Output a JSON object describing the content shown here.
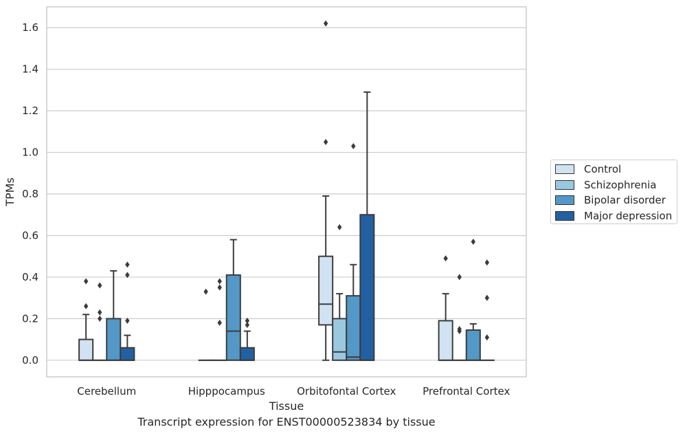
{
  "chart_data": {
    "type": "box",
    "xlabel": "Tissue",
    "ylabel": "TPMs",
    "caption": "Transcript expression for ENST00000523834 by tissue",
    "ylim": [
      -0.08,
      1.7
    ],
    "yticks": [
      "0.0",
      "0.2",
      "0.4",
      "0.6",
      "0.8",
      "1.0",
      "1.2",
      "1.4",
      "1.6"
    ],
    "grid": "horizontal",
    "legend_position": "right",
    "categories": [
      "Cerebellum",
      "Hipppocampus",
      "Orbitofontal Cortex",
      "Prefrontal Cortex"
    ],
    "series": [
      {
        "name": "Control",
        "color": "#d1e2f2",
        "boxes": [
          {
            "q1": 0,
            "median": 0,
            "q3": 0.1,
            "whisker_low": 0,
            "whisker_high": 0.22,
            "outliers": [
              0.26,
              0.38
            ]
          },
          {
            "q1": 0,
            "median": 0,
            "q3": 0,
            "whisker_low": 0,
            "whisker_high": 0,
            "outliers": [
              0.33
            ]
          },
          {
            "q1": 0.17,
            "median": 0.27,
            "q3": 0.5,
            "whisker_low": 0,
            "whisker_high": 0.79,
            "outliers": [
              1.05,
              1.62
            ]
          },
          {
            "q1": 0,
            "median": 0,
            "q3": 0.19,
            "whisker_low": 0,
            "whisker_high": 0.32,
            "outliers": [
              0.49
            ]
          }
        ]
      },
      {
        "name": "Schizophrenia",
        "color": "#9ac8e0",
        "boxes": [
          {
            "q1": 0,
            "median": 0,
            "q3": 0,
            "whisker_low": 0,
            "whisker_high": 0,
            "outliers": [
              0.2,
              0.23,
              0.36
            ]
          },
          {
            "q1": 0,
            "median": 0,
            "q3": 0,
            "whisker_low": 0,
            "whisker_high": 0,
            "outliers": [
              0.18,
              0.35,
              0.38
            ]
          },
          {
            "q1": 0,
            "median": 0.04,
            "q3": 0.2,
            "whisker_low": 0,
            "whisker_high": 0.32,
            "outliers": [
              0.64
            ]
          },
          {
            "q1": 0,
            "median": 0,
            "q3": 0,
            "whisker_low": 0,
            "whisker_high": 0,
            "outliers": [
              0.14,
              0.15,
              0.4
            ]
          }
        ]
      },
      {
        "name": "Bipolar disorder",
        "color": "#5398c6",
        "boxes": [
          {
            "q1": 0,
            "median": 0,
            "q3": 0.2,
            "whisker_low": 0,
            "whisker_high": 0.43,
            "outliers": []
          },
          {
            "q1": 0,
            "median": 0.14,
            "q3": 0.41,
            "whisker_low": 0,
            "whisker_high": 0.58,
            "outliers": []
          },
          {
            "q1": 0,
            "median": 0.015,
            "q3": 0.31,
            "whisker_low": 0,
            "whisker_high": 0.46,
            "outliers": [
              1.03
            ]
          },
          {
            "q1": 0,
            "median": 0,
            "q3": 0.145,
            "whisker_low": 0,
            "whisker_high": 0.175,
            "outliers": [
              0.57
            ]
          }
        ]
      },
      {
        "name": "Major depression",
        "color": "#2260a2",
        "boxes": [
          {
            "q1": 0,
            "median": 0,
            "q3": 0.06,
            "whisker_low": 0,
            "whisker_high": 0.12,
            "outliers": [
              0.19,
              0.41,
              0.46
            ]
          },
          {
            "q1": 0,
            "median": 0,
            "q3": 0.06,
            "whisker_low": 0,
            "whisker_high": 0.14,
            "outliers": [
              0.17,
              0.19
            ]
          },
          {
            "q1": 0,
            "median": 0,
            "q3": 0.7,
            "whisker_low": 0,
            "whisker_high": 1.29,
            "outliers": []
          },
          {
            "q1": 0,
            "median": 0,
            "q3": 0,
            "whisker_low": 0,
            "whisker_high": 0,
            "outliers": [
              0.11,
              0.3,
              0.47
            ]
          }
        ]
      }
    ]
  }
}
